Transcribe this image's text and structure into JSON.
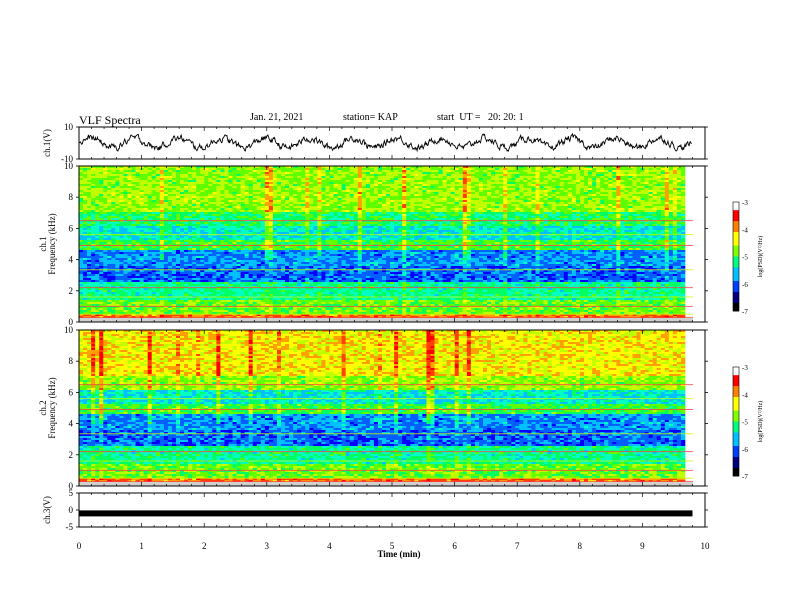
{
  "header": {
    "title": "VLF Spectra",
    "date": "Jan. 21, 2021",
    "station": "station= KAP",
    "start": "start  UT =   20: 20: 1"
  },
  "colors": {
    "trace": "#000000",
    "colormap": [
      "#000000",
      "#0000ff",
      "#00c0ff",
      "#00ff80",
      "#80ff00",
      "#ffff00",
      "#ff8000",
      "#ff0000",
      "#ffffff"
    ]
  },
  "chart_data": [
    {
      "type": "line",
      "ylabel": "ch.1(V)",
      "ylim": [
        -10,
        10
      ],
      "yticks": [
        "10",
        "-10"
      ],
      "xlim": [
        0,
        10
      ],
      "description_series": "waveform trace oscillating roughly between -5 and 6 V",
      "series": [
        {
          "values_range": [
            -5,
            6
          ]
        }
      ]
    },
    {
      "type": "heatmap",
      "ylabel": "ch.1\nFrequency (kHz)",
      "ylim": [
        0,
        10
      ],
      "yticks": [
        "0",
        "2",
        "4",
        "6",
        "8",
        "10"
      ],
      "xlim": [
        0,
        10
      ],
      "colorbar": {
        "label": "log(PSD)(V²/Hz)",
        "range": [
          -7,
          -3
        ],
        "ticks": [
          "-3",
          "-4",
          "-5",
          "-6",
          "-7"
        ]
      }
    },
    {
      "type": "heatmap",
      "ylabel": "ch.2\nFrequency (kHz)",
      "ylim": [
        0,
        10
      ],
      "yticks": [
        "0",
        "2",
        "4",
        "6",
        "8",
        "10"
      ],
      "xlim": [
        0,
        10
      ],
      "colorbar": {
        "label": "log(PSD)(V²/Hz)",
        "range": [
          -7,
          -3
        ],
        "ticks": [
          "-3",
          "-4",
          "-5",
          "-6",
          "-7"
        ]
      }
    },
    {
      "type": "line",
      "ylabel": "ch.3(V)",
      "ylim": [
        -5,
        5
      ],
      "yticks": [
        "5",
        "0",
        "-5"
      ],
      "xlim": [
        0,
        10
      ],
      "series": [
        {
          "values": [
            -1,
            -1
          ]
        }
      ]
    }
  ],
  "xaxis": {
    "label": "Time  (min)",
    "ticks": [
      "0",
      "1",
      "2",
      "3",
      "4",
      "5",
      "6",
      "7",
      "8",
      "9",
      "10"
    ]
  }
}
